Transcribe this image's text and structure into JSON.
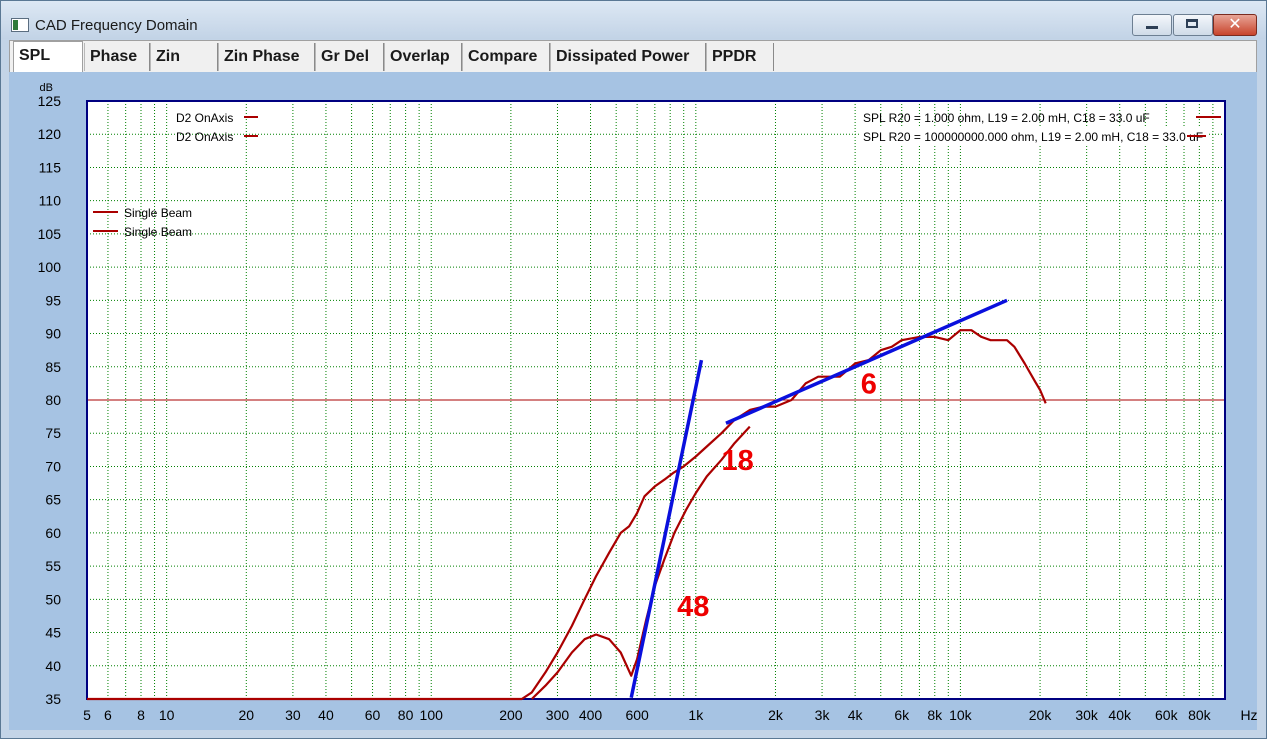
{
  "window": {
    "title": "CAD Frequency Domain",
    "close_glyph": "✕"
  },
  "tabs": [
    {
      "label": "SPL",
      "active": true
    },
    {
      "label": "Phase",
      "active": false
    },
    {
      "label": "Zin",
      "active": false
    },
    {
      "label": "Zin Phase",
      "active": false
    },
    {
      "label": "Gr Del",
      "active": false
    },
    {
      "label": "Overlap",
      "active": false
    },
    {
      "label": "Compare",
      "active": false
    },
    {
      "label": "Dissipated Power",
      "active": false
    },
    {
      "label": "PPDR",
      "active": false
    }
  ],
  "colors": {
    "plot_background": "#ffffff",
    "frame": "#000080",
    "grid": "#008000",
    "curve": "#aa0000",
    "reference_line": "#aa0000",
    "slope_line": "#0a10dd",
    "annotation": "#ee0000"
  },
  "chart_data": {
    "type": "line",
    "x_scale": "log",
    "xlim": [
      5,
      100000
    ],
    "ylim": [
      35,
      125
    ],
    "xlabel": "Hz",
    "ylabel": "dB",
    "grid": true,
    "y_ticks": [
      "35",
      "40",
      "45",
      "50",
      "55",
      "60",
      "65",
      "70",
      "75",
      "80",
      "85",
      "90",
      "95",
      "100",
      "105",
      "110",
      "115",
      "120",
      "125"
    ],
    "x_ticks": [
      {
        "label": "5",
        "value": 5
      },
      {
        "label": "6",
        "value": 6
      },
      {
        "label": "8",
        "value": 8
      },
      {
        "label": "10",
        "value": 10
      },
      {
        "label": "20",
        "value": 20
      },
      {
        "label": "30",
        "value": 30
      },
      {
        "label": "40",
        "value": 40
      },
      {
        "label": "60",
        "value": 60
      },
      {
        "label": "80",
        "value": 80
      },
      {
        "label": "100",
        "value": 100
      },
      {
        "label": "200",
        "value": 200
      },
      {
        "label": "300",
        "value": 300
      },
      {
        "label": "400",
        "value": 400
      },
      {
        "label": "600",
        "value": 600
      },
      {
        "label": "1k",
        "value": 1000
      },
      {
        "label": "2k",
        "value": 2000
      },
      {
        "label": "3k",
        "value": 3000
      },
      {
        "label": "4k",
        "value": 4000
      },
      {
        "label": "6k",
        "value": 6000
      },
      {
        "label": "8k",
        "value": 8000
      },
      {
        "label": "10k",
        "value": 10000
      },
      {
        "label": "20k",
        "value": 20000
      },
      {
        "label": "30k",
        "value": 30000
      },
      {
        "label": "40k",
        "value": 40000
      },
      {
        "label": "60k",
        "value": 60000
      },
      {
        "label": "80k",
        "value": 80000
      }
    ],
    "legends_left": [
      "D2 OnAxis",
      "D2 OnAxis",
      "Single Beam",
      "Single Beam"
    ],
    "legends_right": [
      "SPL  R20 = 1.000 ohm, L19 = 2.00 mH, C18 = 33.0 uF",
      "SPL  R20 = 100000000.000 ohm, L19 = 2.00 mH, C18 = 33.0 uF"
    ],
    "reference_line_db": 80,
    "series": [
      {
        "points": [
          [
            5,
            35
          ],
          [
            220,
            35
          ],
          [
            240,
            36
          ],
          [
            270,
            39
          ],
          [
            300,
            42
          ],
          [
            340,
            46
          ],
          [
            380,
            50
          ],
          [
            420,
            53.5
          ],
          [
            470,
            57
          ],
          [
            520,
            60
          ],
          [
            560,
            61
          ],
          [
            600,
            63
          ],
          [
            640,
            65.5
          ],
          [
            700,
            67
          ],
          [
            760,
            68
          ],
          [
            820,
            69
          ],
          [
            900,
            70
          ],
          [
            1000,
            71.5
          ],
          [
            1100,
            73
          ],
          [
            1250,
            75
          ],
          [
            1400,
            77
          ],
          [
            1600,
            78.5
          ],
          [
            1800,
            79
          ],
          [
            2000,
            79
          ],
          [
            2300,
            80
          ],
          [
            2600,
            82.5
          ],
          [
            2900,
            83.5
          ],
          [
            3200,
            83.5
          ],
          [
            3500,
            83.5
          ],
          [
            4000,
            85.5
          ],
          [
            4500,
            86
          ],
          [
            5000,
            87.5
          ],
          [
            5500,
            88
          ],
          [
            6000,
            89
          ],
          [
            7000,
            89.5
          ],
          [
            8000,
            89.5
          ],
          [
            9000,
            89
          ],
          [
            10000,
            90.5
          ],
          [
            11000,
            90.5
          ],
          [
            12000,
            89.5
          ],
          [
            13000,
            89
          ],
          [
            15000,
            89
          ],
          [
            16000,
            88
          ],
          [
            17500,
            85.5
          ],
          [
            19000,
            83
          ],
          [
            20000,
            81.5
          ],
          [
            21000,
            79.5
          ]
        ]
      },
      {
        "points": [
          [
            240,
            35
          ],
          [
            270,
            37
          ],
          [
            300,
            39
          ],
          [
            340,
            42
          ],
          [
            380,
            44
          ],
          [
            420,
            44.7
          ],
          [
            470,
            44
          ],
          [
            520,
            42
          ],
          [
            570,
            38.5
          ],
          [
            600,
            41
          ],
          [
            650,
            47
          ],
          [
            700,
            52
          ],
          [
            760,
            56
          ],
          [
            830,
            60
          ],
          [
            920,
            63.5
          ],
          [
            1000,
            66
          ],
          [
            1100,
            68.5
          ],
          [
            1250,
            71
          ],
          [
            1400,
            73.5
          ],
          [
            1600,
            76
          ]
        ]
      }
    ],
    "slope_lines": [
      {
        "from": [
          570,
          35.2
        ],
        "to": [
          1050,
          86
        ]
      },
      {
        "from": [
          1300,
          76.5
        ],
        "to": [
          15000,
          95
        ]
      }
    ],
    "annotations": [
      {
        "text": "6",
        "x": 4200,
        "y": 81
      },
      {
        "text": "18",
        "x": 1250,
        "y": 69.5
      },
      {
        "text": "48",
        "x": 850,
        "y": 47.5
      }
    ]
  }
}
